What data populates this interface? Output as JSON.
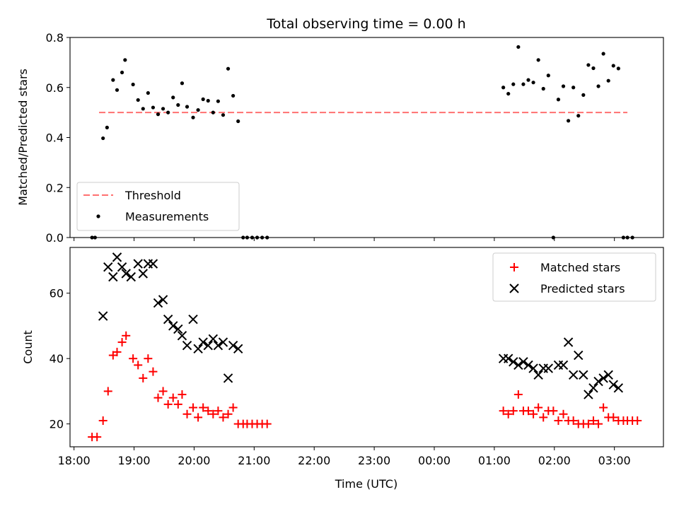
{
  "chart_data": [
    {
      "type": "scatter",
      "title": "Total observing time = 0.00 h",
      "xlabel": "",
      "ylabel": "Matched/Predicted stars",
      "ylim": [
        0,
        0.8
      ],
      "yticks": [
        "0.0",
        "0.2",
        "0.4",
        "0.6",
        "0.8"
      ],
      "legend": {
        "position": "lower-left",
        "entries": [
          "Threshold",
          "Measurements"
        ]
      },
      "threshold": {
        "name": "Threshold",
        "y": 0.5,
        "x_start": "18:25",
        "x_end": "03:13",
        "color": "#ff7070",
        "style": "dashed"
      },
      "series": [
        {
          "name": "Measurements",
          "color": "#000000",
          "points": [
            [
              "18:18",
              0.0
            ],
            [
              "18:21",
              0.0
            ],
            [
              "18:29",
              0.397
            ],
            [
              "18:33",
              0.44
            ],
            [
              "18:39",
              0.63
            ],
            [
              "18:43",
              0.59
            ],
            [
              "18:48",
              0.66
            ],
            [
              "18:51",
              0.71
            ],
            [
              "18:59",
              0.612
            ],
            [
              "19:04",
              0.55
            ],
            [
              "19:09",
              0.515
            ],
            [
              "19:14",
              0.578
            ],
            [
              "19:19",
              0.52
            ],
            [
              "19:24",
              0.493
            ],
            [
              "19:29",
              0.515
            ],
            [
              "19:34",
              0.5
            ],
            [
              "19:39",
              0.56
            ],
            [
              "19:44",
              0.53
            ],
            [
              "19:48",
              0.617
            ],
            [
              "19:53",
              0.523
            ],
            [
              "19:59",
              0.48
            ],
            [
              "20:04",
              0.51
            ],
            [
              "20:09",
              0.553
            ],
            [
              "20:14",
              0.547
            ],
            [
              "20:19",
              0.5
            ],
            [
              "20:24",
              0.545
            ],
            [
              "20:29",
              0.49
            ],
            [
              "20:34",
              0.675
            ],
            [
              "20:39",
              0.567
            ],
            [
              "20:44",
              0.465
            ],
            [
              "20:49",
              0.0
            ],
            [
              "20:53",
              0.0
            ],
            [
              "20:58",
              0.0
            ],
            [
              "21:03",
              0.0
            ],
            [
              "21:08",
              0.0
            ],
            [
              "21:13",
              0.0
            ],
            [
              "01:09",
              0.6
            ],
            [
              "01:14",
              0.575
            ],
            [
              "01:19",
              0.613
            ],
            [
              "01:24",
              0.762
            ],
            [
              "01:29",
              0.613
            ],
            [
              "01:34",
              0.63
            ],
            [
              "01:39",
              0.62
            ],
            [
              "01:44",
              0.71
            ],
            [
              "01:49",
              0.595
            ],
            [
              "01:54",
              0.648
            ],
            [
              "01:59",
              0.0
            ],
            [
              "02:04",
              0.552
            ],
            [
              "02:09",
              0.605
            ],
            [
              "02:14",
              0.467
            ],
            [
              "02:19",
              0.6
            ],
            [
              "02:24",
              0.487
            ],
            [
              "02:29",
              0.57
            ],
            [
              "02:34",
              0.69
            ],
            [
              "02:39",
              0.677
            ],
            [
              "02:44",
              0.605
            ],
            [
              "02:49",
              0.735
            ],
            [
              "02:54",
              0.627
            ],
            [
              "02:59",
              0.687
            ],
            [
              "03:04",
              0.676
            ],
            [
              "03:09",
              0.0
            ],
            [
              "03:13",
              0.0
            ],
            [
              "03:18",
              0.0
            ]
          ]
        }
      ]
    },
    {
      "type": "scatter",
      "title": "",
      "xlabel": "Time (UTC)",
      "ylabel": "Count",
      "ylim": [
        13,
        74
      ],
      "yticks": [
        "20",
        "40",
        "60"
      ],
      "xticks": [
        "18:00",
        "19:00",
        "20:00",
        "21:00",
        "22:00",
        "23:00",
        "00:00",
        "01:00",
        "02:00",
        "03:00"
      ],
      "xlim": [
        "17:56",
        "03:49"
      ],
      "legend": {
        "position": "upper-right",
        "entries": [
          "Matched stars",
          "Predicted stars"
        ]
      },
      "series": [
        {
          "name": "Matched stars",
          "marker": "plus",
          "color": "#ff0000",
          "points": [
            [
              "18:18",
              16
            ],
            [
              "18:23",
              16
            ],
            [
              "18:29",
              21
            ],
            [
              "18:34",
              30
            ],
            [
              "18:39",
              41
            ],
            [
              "18:43",
              42
            ],
            [
              "18:48",
              45
            ],
            [
              "18:52",
              47
            ],
            [
              "18:59",
              40
            ],
            [
              "19:04",
              38
            ],
            [
              "19:09",
              34
            ],
            [
              "19:14",
              40
            ],
            [
              "19:19",
              36
            ],
            [
              "19:24",
              28
            ],
            [
              "19:29",
              30
            ],
            [
              "19:34",
              26
            ],
            [
              "19:39",
              28
            ],
            [
              "19:44",
              26
            ],
            [
              "19:48",
              29
            ],
            [
              "19:53",
              23
            ],
            [
              "19:59",
              25
            ],
            [
              "20:04",
              22
            ],
            [
              "20:09",
              25
            ],
            [
              "20:14",
              24
            ],
            [
              "20:19",
              23
            ],
            [
              "20:24",
              24
            ],
            [
              "20:29",
              22
            ],
            [
              "20:34",
              23
            ],
            [
              "20:39",
              25
            ],
            [
              "20:44",
              20
            ],
            [
              "20:49",
              20
            ],
            [
              "20:53",
              20
            ],
            [
              "20:58",
              20
            ],
            [
              "21:03",
              20
            ],
            [
              "21:08",
              20
            ],
            [
              "21:13",
              20
            ],
            [
              "01:09",
              24
            ],
            [
              "01:14",
              23
            ],
            [
              "01:19",
              24
            ],
            [
              "01:24",
              29
            ],
            [
              "01:29",
              24
            ],
            [
              "01:34",
              24
            ],
            [
              "01:39",
              23
            ],
            [
              "01:44",
              25
            ],
            [
              "01:49",
              22
            ],
            [
              "01:54",
              24
            ],
            [
              "01:59",
              24
            ],
            [
              "02:04",
              21
            ],
            [
              "02:09",
              23
            ],
            [
              "02:14",
              21
            ],
            [
              "02:19",
              21
            ],
            [
              "02:24",
              20
            ],
            [
              "02:29",
              20
            ],
            [
              "02:34",
              20
            ],
            [
              "02:39",
              21
            ],
            [
              "02:44",
              20
            ],
            [
              "02:49",
              25
            ],
            [
              "02:54",
              22
            ],
            [
              "02:59",
              22
            ],
            [
              "03:04",
              21
            ],
            [
              "03:09",
              21
            ],
            [
              "03:13",
              21
            ],
            [
              "03:18",
              21
            ],
            [
              "03:23",
              21
            ]
          ]
        },
        {
          "name": "Predicted stars",
          "marker": "x",
          "color": "#000000",
          "points": [
            [
              "18:29",
              53
            ],
            [
              "18:34",
              68
            ],
            [
              "18:39",
              65
            ],
            [
              "18:43",
              71
            ],
            [
              "18:48",
              68
            ],
            [
              "18:52",
              66
            ],
            [
              "18:57",
              65
            ],
            [
              "19:04",
              69
            ],
            [
              "19:09",
              66
            ],
            [
              "19:14",
              69
            ],
            [
              "19:19",
              69
            ],
            [
              "19:24",
              57
            ],
            [
              "19:29",
              58
            ],
            [
              "19:34",
              52
            ],
            [
              "19:39",
              50
            ],
            [
              "19:44",
              49
            ],
            [
              "19:48",
              47
            ],
            [
              "19:53",
              44
            ],
            [
              "19:59",
              52
            ],
            [
              "20:04",
              43
            ],
            [
              "20:09",
              45
            ],
            [
              "20:14",
              44
            ],
            [
              "20:19",
              46
            ],
            [
              "20:24",
              44
            ],
            [
              "20:29",
              45
            ],
            [
              "20:34",
              34
            ],
            [
              "20:39",
              44
            ],
            [
              "20:44",
              43
            ],
            [
              "01:09",
              40
            ],
            [
              "01:14",
              40
            ],
            [
              "01:19",
              39
            ],
            [
              "01:24",
              38
            ],
            [
              "01:29",
              39
            ],
            [
              "01:34",
              38
            ],
            [
              "01:39",
              37
            ],
            [
              "01:44",
              35
            ],
            [
              "01:49",
              37
            ],
            [
              "01:54",
              37
            ],
            [
              "02:04",
              38
            ],
            [
              "02:09",
              38
            ],
            [
              "02:14",
              45
            ],
            [
              "02:19",
              35
            ],
            [
              "02:24",
              41
            ],
            [
              "02:29",
              35
            ],
            [
              "02:34",
              29
            ],
            [
              "02:39",
              31
            ],
            [
              "02:44",
              33
            ],
            [
              "02:49",
              34
            ],
            [
              "02:54",
              35
            ],
            [
              "02:59",
              32
            ],
            [
              "03:04",
              31
            ]
          ]
        }
      ]
    }
  ]
}
